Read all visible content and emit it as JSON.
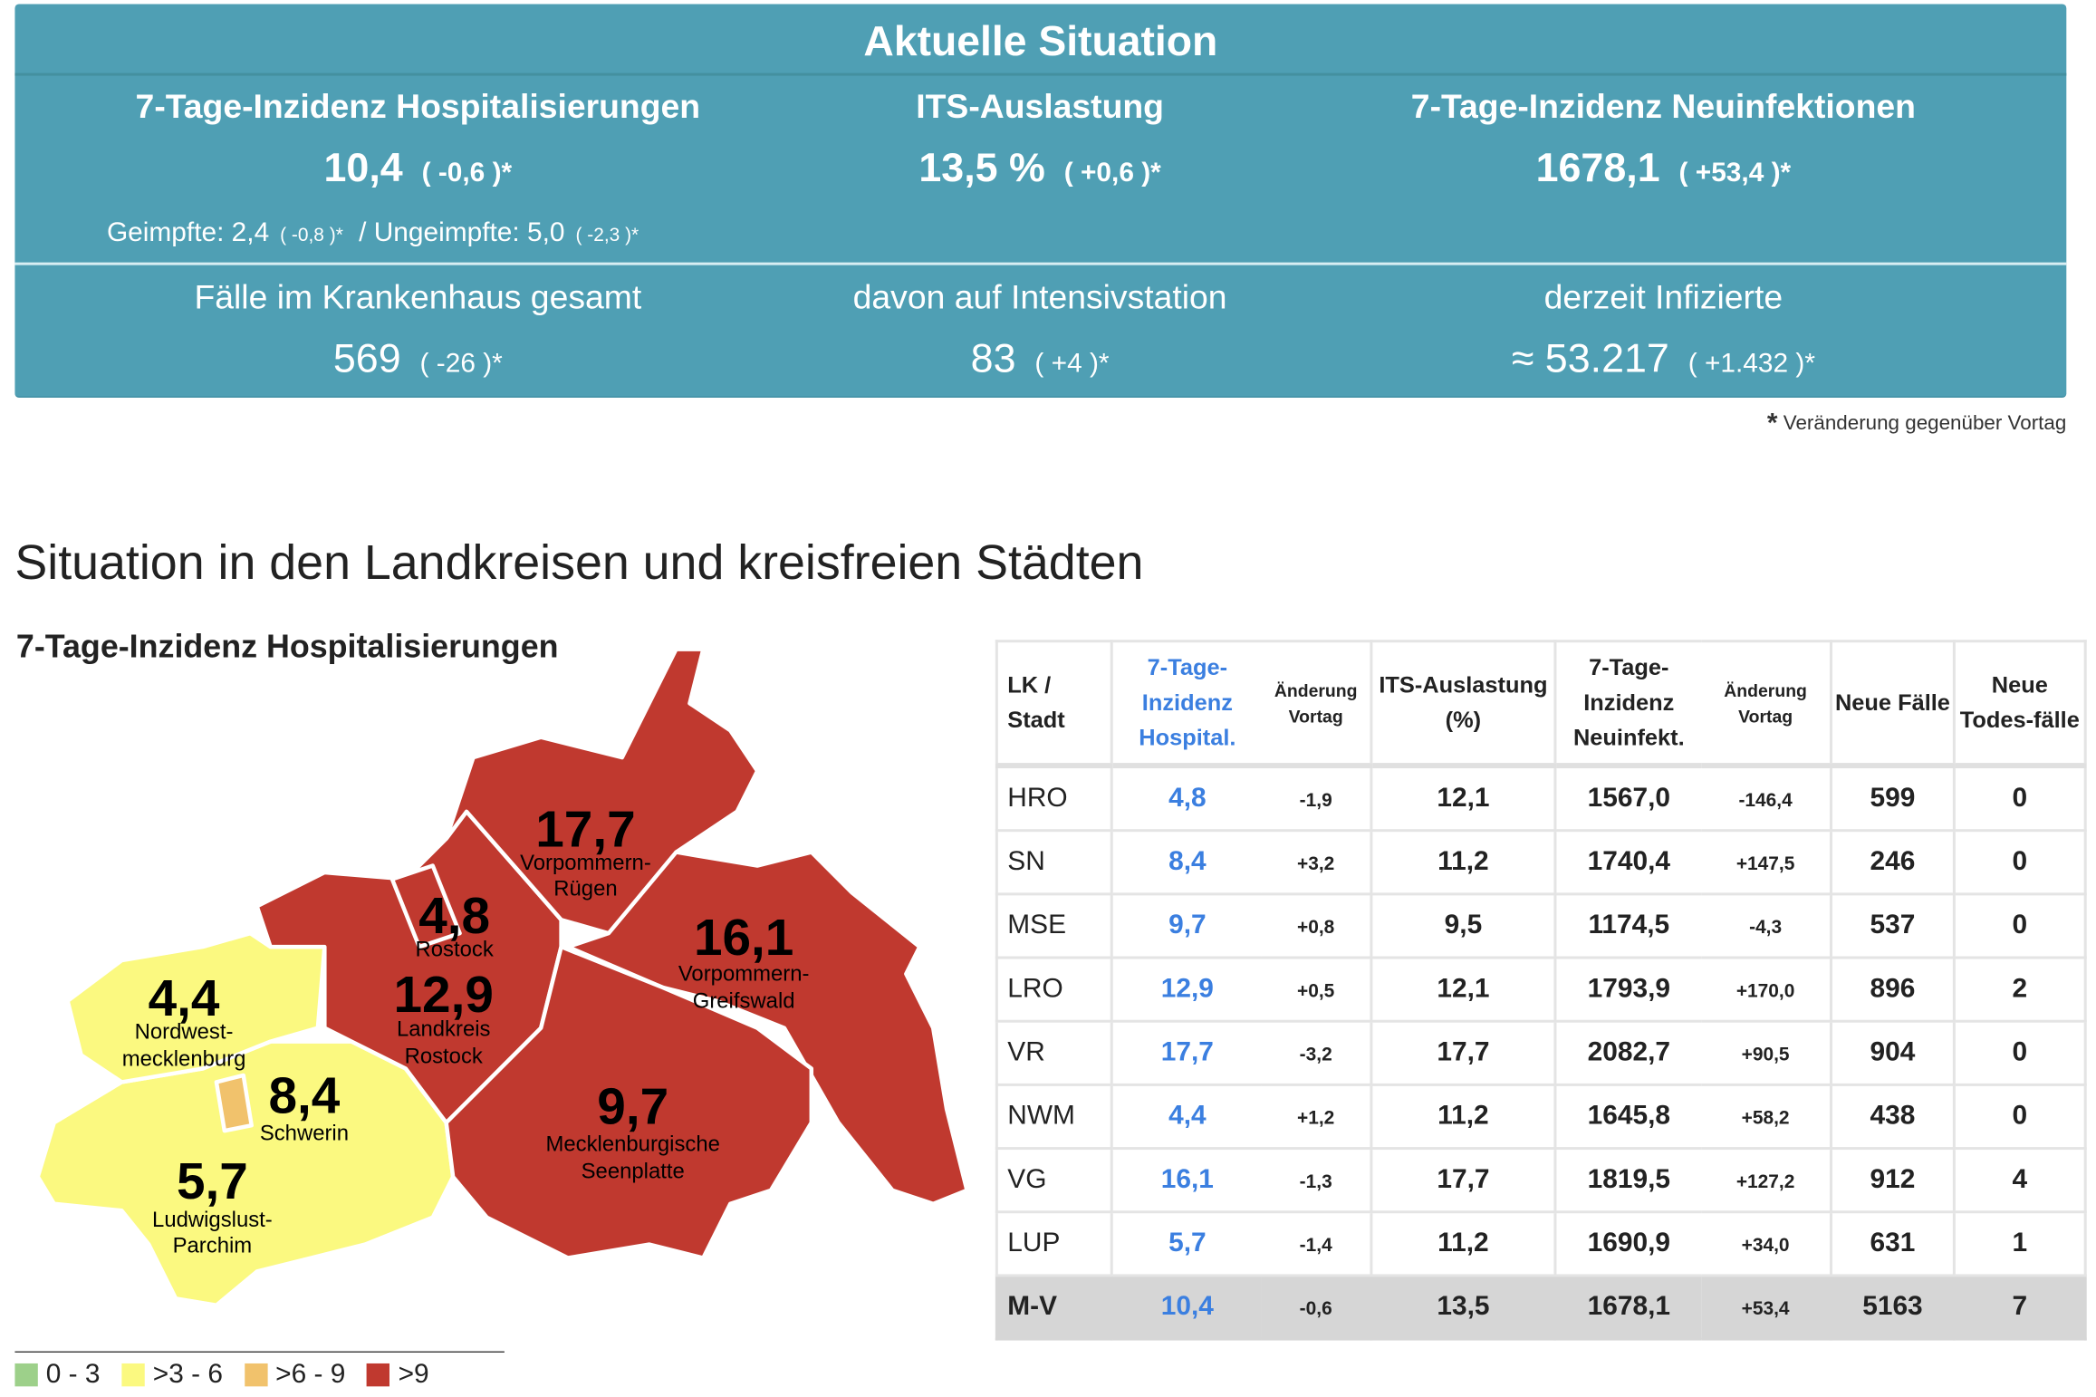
{
  "banner": {
    "title": "Aktuelle Situation",
    "hosp": {
      "label": "7-Tage-Inzidenz Hospitalisierungen",
      "value": "10,4",
      "delta": "( -0,6 )*",
      "geimpfte_label": "Geimpfte: 2,4",
      "geimpfte_delta": "( -0,8 )*",
      "sep": "/",
      "ungeimpfte_label": "Ungeimpfte: 5,0",
      "ungeimpfte_delta": "( -2,3 )*"
    },
    "its": {
      "label": "ITS-Auslastung",
      "value": "13,5 %",
      "delta": "( +0,6 )*"
    },
    "neuinf": {
      "label": "7-Tage-Inzidenz Neuinfektionen",
      "value": "1678,1",
      "delta": "( +53,4 )*"
    },
    "kh": {
      "label": "Fälle im Krankenhaus gesamt",
      "value": "569",
      "delta": "( -26 )*"
    },
    "intensiv": {
      "label": "davon auf Intensivstation",
      "value": "83",
      "delta": "( +4 )*"
    },
    "infiz": {
      "label": "derzeit Infizierte",
      "value": "≈ 53.217",
      "delta": "( +1.432 )*"
    }
  },
  "footnote": {
    "star": "*",
    "text": "Veränderung gegenüber Vortag"
  },
  "section_title": "Situation in den Landkreisen und kreisfreien Städten",
  "map": {
    "title": "7-Tage-Inzidenz Hospitalisierungen",
    "colors": {
      "0-3": "#9dd08a",
      ">3-6": "#fbf980",
      ">6-9": "#f1c26c",
      ">9": "#c0392f"
    },
    "regions": [
      {
        "value": "17,7",
        "name1": "Vorpommern-",
        "name2": "Rügen"
      },
      {
        "value": "4,8",
        "name1": "Rostock",
        "name2": ""
      },
      {
        "value": "12,9",
        "name1": "Landkreis",
        "name2": "Rostock"
      },
      {
        "value": "16,1",
        "name1": "Vorpommern-",
        "name2": "Greifswald"
      },
      {
        "value": "4,4",
        "name1": "Nordwest-",
        "name2": "mecklenburg"
      },
      {
        "value": "8,4",
        "name1": "Schwerin",
        "name2": ""
      },
      {
        "value": "9,7",
        "name1": "Mecklenburgische",
        "name2": "Seenplatte"
      },
      {
        "value": "5,7",
        "name1": "Ludwigslust-",
        "name2": "Parchim"
      }
    ],
    "legend": [
      {
        "label": "0 - 3",
        "color": "#9dd08a"
      },
      {
        "label": ">3 - 6",
        "color": "#fbf980"
      },
      {
        "label": ">6 - 9",
        "color": "#f1c26c"
      },
      {
        "label": ">9",
        "color": "#c0392f"
      }
    ]
  },
  "table": {
    "headers": {
      "lk": "LK / Stadt",
      "hosp": "7-Tage-Inzidenz Hospital.",
      "hosp_change": "Änderung Vortag",
      "its": "ITS-Auslastung (%)",
      "neu": "7-Tage-Inzidenz Neuinfekt.",
      "neu_change": "Änderung Vortag",
      "faelle": "Neue Fälle",
      "tod": "Neue Todes-fälle"
    },
    "rows": [
      [
        "HRO",
        "4,8",
        "-1,9",
        "12,1",
        "1567,0",
        "-146,4",
        "599",
        "0"
      ],
      [
        "SN",
        "8,4",
        "+3,2",
        "11,2",
        "1740,4",
        "+147,5",
        "246",
        "0"
      ],
      [
        "MSE",
        "9,7",
        "+0,8",
        "9,5",
        "1174,5",
        "-4,3",
        "537",
        "0"
      ],
      [
        "LRO",
        "12,9",
        "+0,5",
        "12,1",
        "1793,9",
        "+170,0",
        "896",
        "2"
      ],
      [
        "VR",
        "17,7",
        "-3,2",
        "17,7",
        "2082,7",
        "+90,5",
        "904",
        "0"
      ],
      [
        "NWM",
        "4,4",
        "+1,2",
        "11,2",
        "1645,8",
        "+58,2",
        "438",
        "0"
      ],
      [
        "VG",
        "16,1",
        "-1,3",
        "17,7",
        "1819,5",
        "+127,2",
        "912",
        "4"
      ],
      [
        "LUP",
        "5,7",
        "-1,4",
        "11,2",
        "1690,9",
        "+34,0",
        "631",
        "1"
      ]
    ],
    "total": [
      "M-V",
      "10,4",
      "-0,6",
      "13,5",
      "1678,1",
      "+53,4",
      "5163",
      "7"
    ]
  }
}
